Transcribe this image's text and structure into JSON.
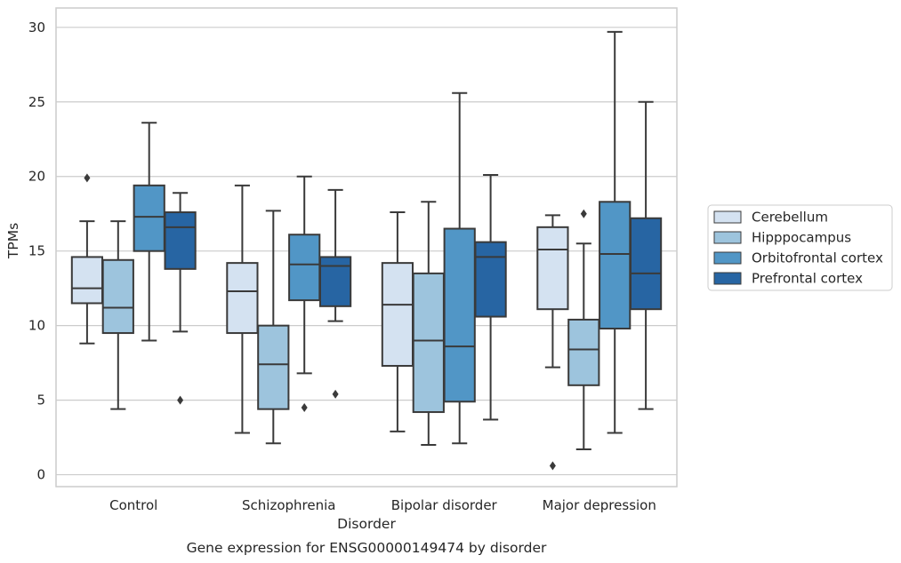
{
  "chart_data": {
    "type": "box",
    "caption": "Gene expression for ENSG00000149474 by disorder",
    "xlabel": "Disorder",
    "ylabel": "TPMs",
    "ylim": [
      -0.8,
      31.3
    ],
    "yticks": [
      0,
      5,
      10,
      15,
      20,
      25,
      30
    ],
    "grid": true,
    "legend_position": "right",
    "categories": [
      "Control",
      "Schizophrenia",
      "Bipolar disorder",
      "Major depression"
    ],
    "series": [
      {
        "name": "Cerebellum",
        "color": "#d4e2f1",
        "boxes": [
          {
            "whislo": 8.8,
            "q1": 11.5,
            "med": 12.5,
            "q3": 14.6,
            "whishi": 17.0,
            "fliers": [
              19.9
            ]
          },
          {
            "whislo": 2.8,
            "q1": 9.5,
            "med": 12.3,
            "q3": 14.2,
            "whishi": 19.4,
            "fliers": []
          },
          {
            "whislo": 2.9,
            "q1": 7.3,
            "med": 11.4,
            "q3": 14.2,
            "whishi": 17.6,
            "fliers": []
          },
          {
            "whislo": 7.2,
            "q1": 11.1,
            "med": 15.1,
            "q3": 16.6,
            "whishi": 17.4,
            "fliers": [
              0.6
            ]
          }
        ]
      },
      {
        "name": "Hipppocampus",
        "color": "#9dc4dd",
        "boxes": [
          {
            "whislo": 4.4,
            "q1": 9.5,
            "med": 11.2,
            "q3": 14.4,
            "whishi": 17.0,
            "fliers": []
          },
          {
            "whislo": 2.1,
            "q1": 4.4,
            "med": 7.4,
            "q3": 10.0,
            "whishi": 17.7,
            "fliers": []
          },
          {
            "whislo": 2.0,
            "q1": 4.2,
            "med": 9.0,
            "q3": 13.5,
            "whishi": 18.3,
            "fliers": []
          },
          {
            "whislo": 1.7,
            "q1": 6.0,
            "med": 8.4,
            "q3": 10.4,
            "whishi": 15.5,
            "fliers": [
              17.5
            ]
          }
        ]
      },
      {
        "name": "Orbitofrontal cortex",
        "color": "#5196c6",
        "boxes": [
          {
            "whislo": 9.0,
            "q1": 15.0,
            "med": 17.3,
            "q3": 19.4,
            "whishi": 23.6,
            "fliers": []
          },
          {
            "whislo": 6.8,
            "q1": 11.7,
            "med": 14.1,
            "q3": 16.1,
            "whishi": 20.0,
            "fliers": [
              4.5
            ]
          },
          {
            "whislo": 2.1,
            "q1": 4.9,
            "med": 8.6,
            "q3": 16.5,
            "whishi": 25.6,
            "fliers": []
          },
          {
            "whislo": 2.8,
            "q1": 9.8,
            "med": 14.8,
            "q3": 18.3,
            "whishi": 29.7,
            "fliers": []
          }
        ]
      },
      {
        "name": "Prefrontal cortex",
        "color": "#2765a3",
        "boxes": [
          {
            "whislo": 9.6,
            "q1": 13.8,
            "med": 16.6,
            "q3": 17.6,
            "whishi": 18.9,
            "fliers": [
              5.0
            ]
          },
          {
            "whislo": 10.3,
            "q1": 11.3,
            "med": 14.0,
            "q3": 14.6,
            "whishi": 19.1,
            "fliers": [
              5.4
            ]
          },
          {
            "whislo": 3.7,
            "q1": 10.6,
            "med": 14.6,
            "q3": 15.6,
            "whishi": 20.1,
            "fliers": []
          },
          {
            "whislo": 4.4,
            "q1": 11.1,
            "med": 13.5,
            "q3": 17.2,
            "whishi": 25.0,
            "fliers": []
          }
        ]
      }
    ],
    "colors": {
      "grid": "#cccccc",
      "frame": "#cccccc",
      "box_edge": "#3a3a3a",
      "text": "#262626"
    }
  }
}
